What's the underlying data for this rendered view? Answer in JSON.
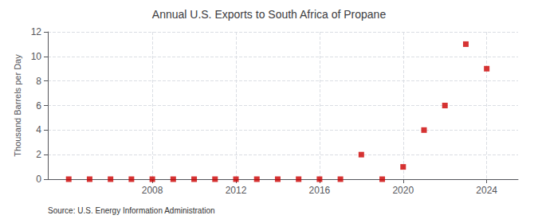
{
  "chart_data": {
    "type": "scatter",
    "title": "Annual U.S. Exports to South Africa of Propane",
    "ylabel": "Thousand Barrels per Day",
    "annotations": [
      "Source: U.S. Energy Information Administration"
    ],
    "x": [
      2004,
      2005,
      2006,
      2007,
      2008,
      2009,
      2010,
      2011,
      2012,
      2013,
      2014,
      2015,
      2016,
      2017,
      2018,
      2019,
      2020,
      2021,
      2022,
      2023,
      2024
    ],
    "values": [
      0,
      0,
      0,
      0,
      0,
      0,
      0,
      0,
      0,
      0,
      0,
      0,
      0,
      0,
      2,
      0,
      1,
      4,
      6,
      11,
      9
    ],
    "color": "#cc0000",
    "marker": "square",
    "xlim": [
      2003.0,
      2025.5
    ],
    "ylim": [
      0,
      12
    ],
    "xticks": [
      2008,
      2012,
      2016,
      2020,
      2024
    ],
    "yticks": [
      0,
      2,
      4,
      6,
      8,
      10,
      12
    ],
    "grid": true
  }
}
